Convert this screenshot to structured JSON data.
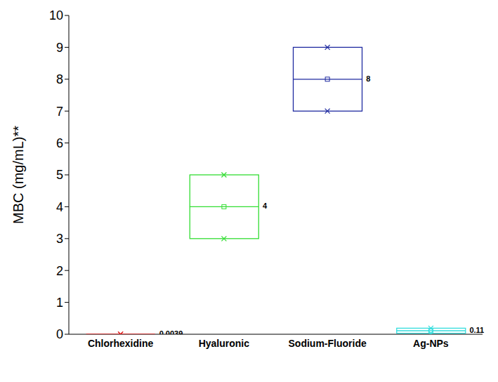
{
  "chart_data": {
    "type": "box",
    "y_label": "MBC (mg/mL)**",
    "categories": [
      "Chlorhexidine",
      "Hyaluronic",
      "Sodium-Fluoride",
      "Ag-NPs"
    ],
    "q1": [
      0.0039,
      3,
      7,
      0.03
    ],
    "median": [
      0.0039,
      4,
      8,
      0.11
    ],
    "q3": [
      0.0039,
      5,
      9,
      0.19
    ],
    "min": [
      0.0039,
      3,
      7,
      0.03
    ],
    "max": [
      0.0039,
      5,
      9,
      0.19
    ],
    "mean": [
      0.0039,
      4,
      8,
      0.11
    ],
    "colors": [
      "#e02020",
      "#33dd33",
      "#1f2aa0",
      "#33dddd"
    ],
    "ylim": [
      0,
      10
    ],
    "yticks": [
      0,
      1,
      2,
      3,
      4,
      5,
      6,
      7,
      8,
      9,
      10
    ],
    "data_labels": true,
    "grid": false
  }
}
